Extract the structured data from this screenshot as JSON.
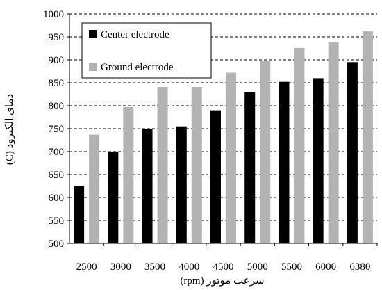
{
  "chart_data": {
    "type": "bar",
    "xlabel": "سرعت موتور (rpm)",
    "ylabel": "دمای الکترود (C)",
    "categories": [
      "2500",
      "3000",
      "3500",
      "4000",
      "4500",
      "5000",
      "5500",
      "6000",
      "6380"
    ],
    "series": [
      {
        "name": "Center electrode",
        "color": "#000000",
        "values": [
          625,
          700,
          750,
          755,
          790,
          830,
          852,
          860,
          895
        ]
      },
      {
        "name": "Ground electrode",
        "color": "#b3b3b3",
        "values": [
          737,
          797,
          841,
          841,
          872,
          897,
          926,
          938,
          962
        ]
      }
    ],
    "ylim": [
      500,
      1000
    ],
    "yticks": [
      500,
      550,
      600,
      650,
      700,
      750,
      800,
      850,
      900,
      950,
      1000
    ],
    "grid": "dashed horizontal",
    "legend_position": "top-left"
  }
}
